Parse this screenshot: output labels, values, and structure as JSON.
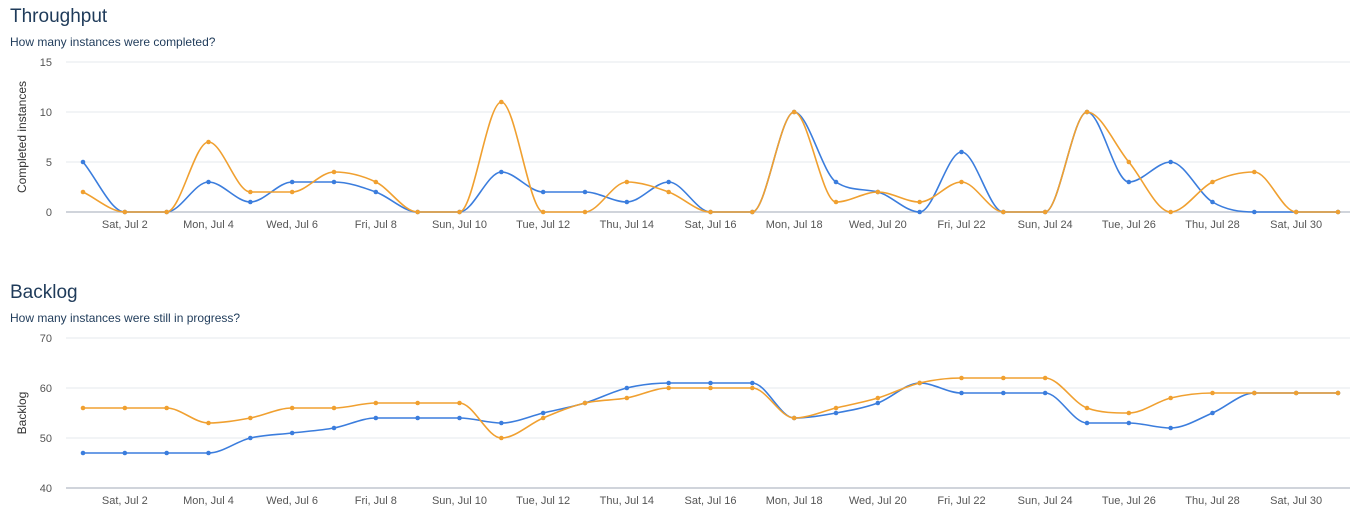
{
  "chart_data": [
    {
      "type": "line",
      "title": "Throughput",
      "subtitle": "How many instances were completed?",
      "ylabel": "Completed instances",
      "xlabel": "",
      "ylim": [
        0,
        15
      ],
      "yticks": [
        0,
        5,
        10,
        15
      ],
      "grid": true,
      "x": [
        "Jul 1",
        "Jul 2",
        "Jul 3",
        "Jul 4",
        "Jul 5",
        "Jul 6",
        "Jul 7",
        "Jul 8",
        "Jul 9",
        "Jul 10",
        "Jul 11",
        "Jul 12",
        "Jul 13",
        "Jul 14",
        "Jul 15",
        "Jul 16",
        "Jul 17",
        "Jul 18",
        "Jul 19",
        "Jul 20",
        "Jul 21",
        "Jul 22",
        "Jul 23",
        "Jul 24",
        "Jul 25",
        "Jul 26",
        "Jul 27",
        "Jul 28",
        "Jul 29",
        "Jul 30",
        "Jul 31"
      ],
      "x_tick_labels": [
        "Sat, Jul 2",
        "Mon, Jul 4",
        "Wed, Jul 6",
        "Fri, Jul 8",
        "Sun, Jul 10",
        "Tue, Jul 12",
        "Thu, Jul 14",
        "Sat, Jul 16",
        "Mon, Jul 18",
        "Wed, Jul 20",
        "Fri, Jul 22",
        "Sun, Jul 24",
        "Tue, Jul 26",
        "Thu, Jul 28",
        "Sat, Jul 30"
      ],
      "series": [
        {
          "color": "#3b7ddd",
          "values": [
            5,
            0,
            0,
            3,
            1,
            3,
            3,
            2,
            0,
            0,
            4,
            2,
            2,
            1,
            3,
            0,
            0,
            10,
            3,
            2,
            0,
            6,
            0,
            0,
            10,
            3,
            5,
            1,
            0,
            0,
            0
          ]
        },
        {
          "color": "#f0a030",
          "values": [
            2,
            0,
            0,
            7,
            2,
            2,
            4,
            3,
            0,
            0,
            11,
            0,
            0,
            3,
            2,
            0,
            0,
            10,
            1,
            2,
            1,
            3,
            0,
            0,
            10,
            5,
            0,
            3,
            4,
            0,
            0
          ]
        }
      ]
    },
    {
      "type": "line",
      "title": "Backlog",
      "subtitle": "How many instances were still in progress?",
      "ylabel": "Backlog",
      "xlabel": "",
      "ylim": [
        40,
        70
      ],
      "yticks": [
        40,
        50,
        60,
        70
      ],
      "grid": true,
      "x": [
        "Jul 1",
        "Jul 2",
        "Jul 3",
        "Jul 4",
        "Jul 5",
        "Jul 6",
        "Jul 7",
        "Jul 8",
        "Jul 9",
        "Jul 10",
        "Jul 11",
        "Jul 12",
        "Jul 13",
        "Jul 14",
        "Jul 15",
        "Jul 16",
        "Jul 17",
        "Jul 18",
        "Jul 19",
        "Jul 20",
        "Jul 21",
        "Jul 22",
        "Jul 23",
        "Jul 24",
        "Jul 25",
        "Jul 26",
        "Jul 27",
        "Jul 28",
        "Jul 29",
        "Jul 30",
        "Jul 31"
      ],
      "x_tick_labels": [
        "Sat, Jul 2",
        "Mon, Jul 4",
        "Wed, Jul 6",
        "Fri, Jul 8",
        "Sun, Jul 10",
        "Tue, Jul 12",
        "Thu, Jul 14",
        "Sat, Jul 16",
        "Mon, Jul 18",
        "Wed, Jul 20",
        "Fri, Jul 22",
        "Sun, Jul 24",
        "Tue, Jul 26",
        "Thu, Jul 28",
        "Sat, Jul 30"
      ],
      "series": [
        {
          "color": "#3b7ddd",
          "values": [
            47,
            47,
            47,
            47,
            50,
            51,
            52,
            54,
            54,
            54,
            53,
            55,
            57,
            60,
            61,
            61,
            61,
            54,
            55,
            57,
            61,
            59,
            59,
            59,
            53,
            53,
            52,
            55,
            59,
            59,
            59
          ]
        },
        {
          "color": "#f0a030",
          "values": [
            56,
            56,
            56,
            53,
            54,
            56,
            56,
            57,
            57,
            57,
            50,
            54,
            57,
            58,
            60,
            60,
            60,
            54,
            56,
            58,
            61,
            62,
            62,
            62,
            56,
            55,
            58,
            59,
            59,
            59,
            59
          ]
        }
      ]
    }
  ]
}
